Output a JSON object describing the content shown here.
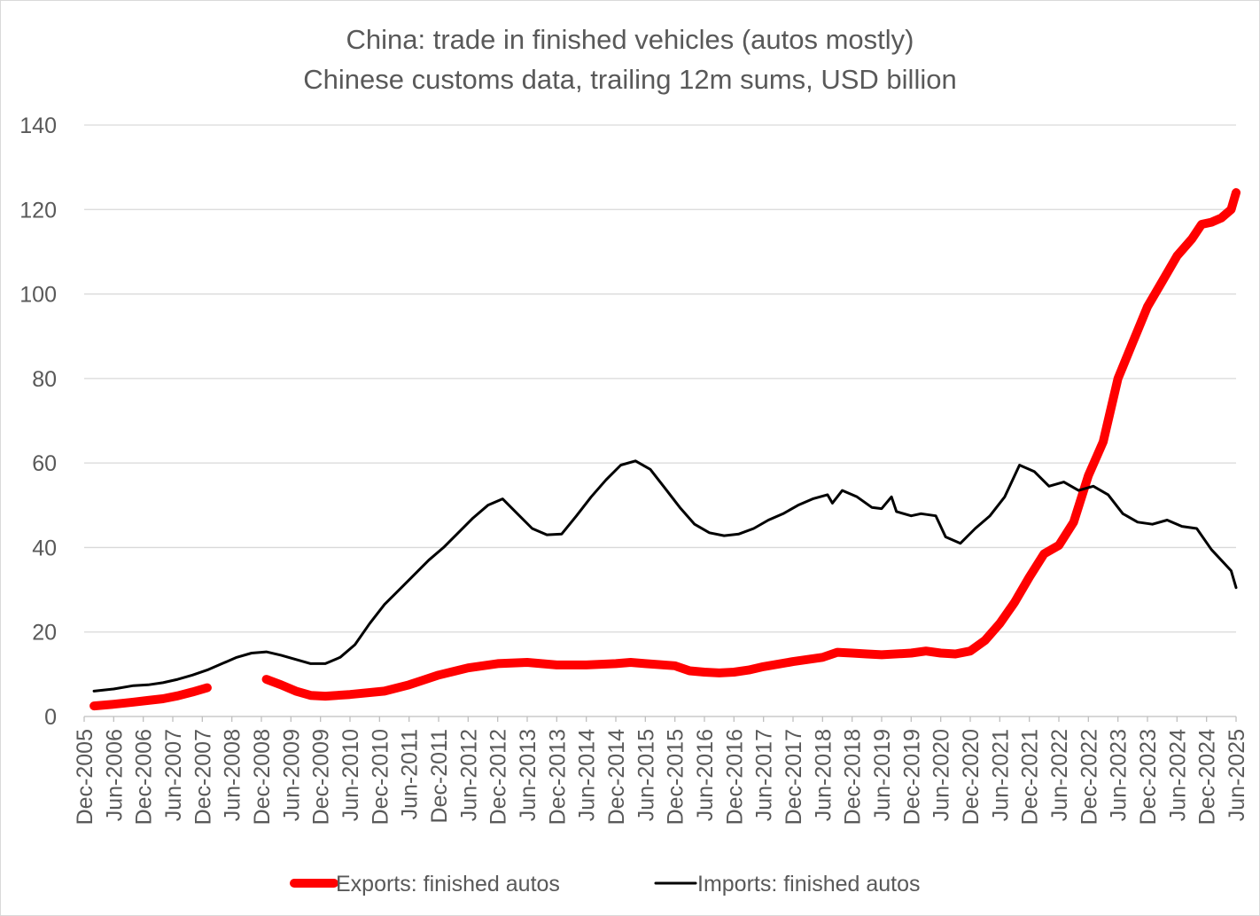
{
  "chart_data": {
    "type": "line",
    "title_lines": [
      "China: trade in finished vehicles  (autos mostly)",
      "Chinese customs data, trailing 12m sums, USD billion"
    ],
    "xlabel": "",
    "ylabel": "",
    "ylim": [
      0,
      140
    ],
    "y_ticks": [
      0,
      20,
      40,
      60,
      80,
      100,
      120,
      140
    ],
    "x_range": [
      "2005-12",
      "2025-06"
    ],
    "x_tick_labels": [
      "Dec-2005",
      "Jun-2006",
      "Dec-2006",
      "Jun-2007",
      "Dec-2007",
      "Jun-2008",
      "Dec-2008",
      "Jun-2009",
      "Dec-2009",
      "Jun-2010",
      "Dec-2010",
      "Jun-2011",
      "Dec-2011",
      "Jun-2012",
      "Dec-2012",
      "Jun-2013",
      "Dec-2013",
      "Jun-2014",
      "Dec-2014",
      "Jun-2015",
      "Dec-2015",
      "Jun-2016",
      "Dec-2016",
      "Jun-2017",
      "Dec-2017",
      "Jun-2018",
      "Dec-2018",
      "Jun-2019",
      "Dec-2019",
      "Jun-2020",
      "Dec-2020",
      "Jun-2021",
      "Dec-2021",
      "Jun-2022",
      "Dec-2022",
      "Jun-2023",
      "Dec-2023",
      "Jun-2024",
      "Dec-2024",
      "Jun-2025"
    ],
    "grid": "horizontal",
    "legend_position": "bottom",
    "series": [
      {
        "name": "Exports: finished autos",
        "color": "#ff0000",
        "segments": [
          [
            [
              "2006-02",
              2.5
            ],
            [
              "2006-06",
              2.9
            ],
            [
              "2006-10",
              3.4
            ],
            [
              "2007-01",
              3.8
            ],
            [
              "2007-04",
              4.2
            ],
            [
              "2007-07",
              4.9
            ],
            [
              "2007-10",
              5.8
            ],
            [
              "2008-01",
              6.8
            ]
          ],
          [
            [
              "2009-01",
              8.8
            ],
            [
              "2009-04",
              7.5
            ],
            [
              "2009-07",
              6.0
            ],
            [
              "2009-10",
              5.0
            ],
            [
              "2010-01",
              4.8
            ],
            [
              "2010-06",
              5.2
            ],
            [
              "2011-01",
              6.0
            ],
            [
              "2011-06",
              7.5
            ],
            [
              "2011-12",
              9.8
            ],
            [
              "2012-06",
              11.5
            ],
            [
              "2012-12",
              12.5
            ],
            [
              "2013-06",
              12.8
            ],
            [
              "2013-12",
              12.2
            ],
            [
              "2014-06",
              12.2
            ],
            [
              "2014-12",
              12.5
            ],
            [
              "2015-03",
              12.8
            ],
            [
              "2015-06",
              12.5
            ],
            [
              "2015-12",
              12.0
            ],
            [
              "2016-03",
              10.8
            ],
            [
              "2016-06",
              10.5
            ],
            [
              "2016-09",
              10.3
            ],
            [
              "2016-12",
              10.5
            ],
            [
              "2017-03",
              11.0
            ],
            [
              "2017-06",
              11.8
            ],
            [
              "2017-12",
              13.0
            ],
            [
              "2018-06",
              14.0
            ],
            [
              "2018-09",
              15.2
            ],
            [
              "2018-12",
              15.0
            ],
            [
              "2019-03",
              14.8
            ],
            [
              "2019-06",
              14.6
            ],
            [
              "2019-12",
              15.0
            ],
            [
              "2020-03",
              15.5
            ],
            [
              "2020-06",
              15.0
            ],
            [
              "2020-09",
              14.8
            ],
            [
              "2020-12",
              15.5
            ],
            [
              "2021-03",
              18.0
            ],
            [
              "2021-06",
              22.0
            ],
            [
              "2021-09",
              27.0
            ],
            [
              "2021-12",
              33.0
            ],
            [
              "2022-03",
              38.5
            ],
            [
              "2022-06",
              40.5
            ],
            [
              "2022-09",
              46.0
            ],
            [
              "2022-12",
              57.0
            ],
            [
              "2023-03",
              65.0
            ],
            [
              "2023-06",
              80.0
            ],
            [
              "2023-09",
              88.5
            ],
            [
              "2023-12",
              97.0
            ],
            [
              "2024-03",
              103.0
            ],
            [
              "2024-06",
              109.0
            ],
            [
              "2024-09",
              113.0
            ],
            [
              "2024-11",
              116.5
            ],
            [
              "2025-01",
              117.0
            ],
            [
              "2025-03",
              118.0
            ],
            [
              "2025-05",
              120.0
            ],
            [
              "2025-06",
              124.0
            ]
          ]
        ]
      },
      {
        "name": "Imports: finished autos",
        "color": "#000000",
        "segments": [
          [
            [
              "2006-02",
              6.0
            ],
            [
              "2006-06",
              6.5
            ],
            [
              "2006-10",
              7.3
            ],
            [
              "2007-01",
              7.5
            ],
            [
              "2007-04",
              8.0
            ],
            [
              "2007-07",
              8.8
            ],
            [
              "2007-10",
              9.8
            ],
            [
              "2008-01",
              11.0
            ],
            [
              "2008-04",
              12.5
            ],
            [
              "2008-07",
              14.0
            ],
            [
              "2008-10",
              15.0
            ],
            [
              "2009-01",
              15.3
            ],
            [
              "2009-04",
              14.5
            ],
            [
              "2009-07",
              13.5
            ],
            [
              "2009-10",
              12.5
            ],
            [
              "2010-01",
              12.5
            ],
            [
              "2010-04",
              14.0
            ],
            [
              "2010-07",
              17.0
            ],
            [
              "2010-10",
              22.0
            ],
            [
              "2011-01",
              26.5
            ],
            [
              "2011-04",
              30.0
            ],
            [
              "2011-07",
              33.5
            ],
            [
              "2011-10",
              37.0
            ],
            [
              "2012-01",
              40.0
            ],
            [
              "2012-04",
              43.5
            ],
            [
              "2012-07",
              47.0
            ],
            [
              "2012-10",
              50.0
            ],
            [
              "2013-01",
              51.5
            ],
            [
              "2013-04",
              48.0
            ],
            [
              "2013-07",
              44.5
            ],
            [
              "2013-10",
              43.0
            ],
            [
              "2014-01",
              43.2
            ],
            [
              "2014-04",
              47.5
            ],
            [
              "2014-07",
              52.0
            ],
            [
              "2014-10",
              56.0
            ],
            [
              "2015-01",
              59.5
            ],
            [
              "2015-04",
              60.5
            ],
            [
              "2015-07",
              58.5
            ],
            [
              "2015-10",
              54.0
            ],
            [
              "2016-01",
              49.5
            ],
            [
              "2016-04",
              45.5
            ],
            [
              "2016-07",
              43.5
            ],
            [
              "2016-10",
              42.8
            ],
            [
              "2017-01",
              43.2
            ],
            [
              "2017-04",
              44.5
            ],
            [
              "2017-07",
              46.5
            ],
            [
              "2017-10",
              48.0
            ],
            [
              "2018-01",
              50.0
            ],
            [
              "2018-04",
              51.5
            ],
            [
              "2018-07",
              52.5
            ],
            [
              "2018-08",
              50.5
            ],
            [
              "2018-10",
              53.5
            ],
            [
              "2019-01",
              52.0
            ],
            [
              "2019-04",
              49.5
            ],
            [
              "2019-06",
              49.2
            ],
            [
              "2019-08",
              52.0
            ],
            [
              "2019-09",
              48.5
            ],
            [
              "2019-12",
              47.5
            ],
            [
              "2020-02",
              48.0
            ],
            [
              "2020-05",
              47.5
            ],
            [
              "2020-07",
              42.5
            ],
            [
              "2020-10",
              41.0
            ],
            [
              "2021-01",
              44.5
            ],
            [
              "2021-04",
              47.5
            ],
            [
              "2021-07",
              52.0
            ],
            [
              "2021-10",
              59.5
            ],
            [
              "2022-01",
              58.0
            ],
            [
              "2022-04",
              54.5
            ],
            [
              "2022-07",
              55.5
            ],
            [
              "2022-10",
              53.5
            ],
            [
              "2023-01",
              54.5
            ],
            [
              "2023-04",
              52.5
            ],
            [
              "2023-07",
              48.0
            ],
            [
              "2023-10",
              46.0
            ],
            [
              "2024-01",
              45.5
            ],
            [
              "2024-04",
              46.5
            ],
            [
              "2024-07",
              45.0
            ],
            [
              "2024-10",
              44.5
            ],
            [
              "2025-01",
              39.5
            ],
            [
              "2025-03",
              37.0
            ],
            [
              "2025-05",
              34.5
            ],
            [
              "2025-06",
              30.5
            ]
          ]
        ]
      }
    ]
  }
}
